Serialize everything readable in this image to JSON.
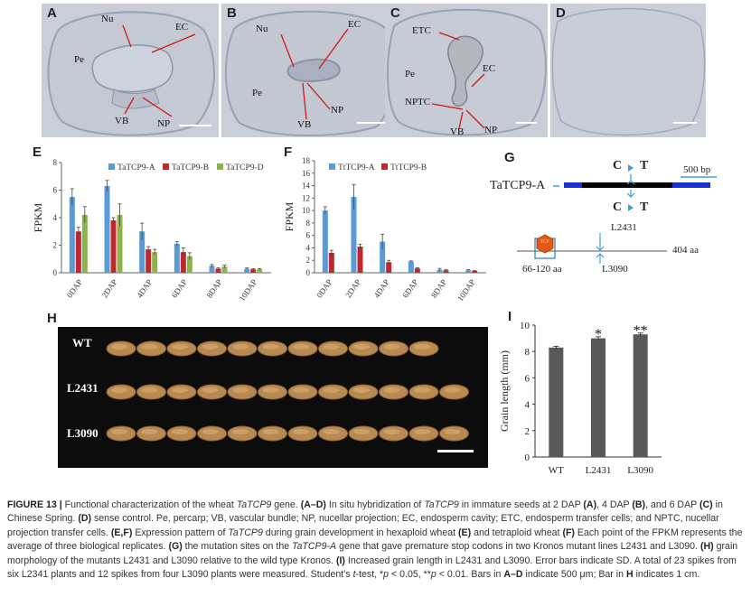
{
  "panel_a": {
    "letter": "A",
    "labels": {
      "nu": "Nu",
      "ec": "EC",
      "pe": "Pe",
      "vb": "VB",
      "np": "NP"
    }
  },
  "panel_b": {
    "letter": "B",
    "labels": {
      "nu": "Nu",
      "ec": "EC",
      "pe": "Pe",
      "vb": "VB",
      "np": "NP"
    }
  },
  "panel_c": {
    "letter": "C",
    "labels": {
      "etc": "ETC",
      "ec": "EC",
      "pe": "Pe",
      "nptc": "NPTC",
      "vb": "VB",
      "np": "NP"
    }
  },
  "panel_d": {
    "letter": "D"
  },
  "panel_e_letter": "E",
  "panel_f_letter": "F",
  "panel_g": {
    "letter": "G",
    "gene_label": "TaTCP9-A",
    "mut_top": {
      "from": "C",
      "to": "T"
    },
    "mut_bottom": {
      "from": "C",
      "to": "T"
    },
    "scale": "500 bp",
    "line_l2431": "L2431",
    "line_l3090": "L3090",
    "protein_len": "404 aa",
    "domain_range": "66-120 aa",
    "domain_tag": "TCP",
    "colors": {
      "exon": "#1a2fd6",
      "intron": "#000000",
      "domain": "#e25a1a",
      "arrow": "#3aa0d8"
    }
  },
  "panel_h": {
    "letter": "H",
    "rows": [
      "WT",
      "L2431",
      "L3090"
    ]
  },
  "chart_data": [
    {
      "id": "E",
      "type": "bar",
      "ylabel": "FPKM",
      "ylim": [
        0,
        8
      ],
      "yticks": [
        0,
        2,
        4,
        6,
        8
      ],
      "categories": [
        "0DAP",
        "2DAP",
        "4DAP",
        "6DAP",
        "8DAP",
        "10DAP"
      ],
      "series": [
        {
          "name": "TaTCP9-A",
          "color": "#5b9bd5",
          "values": [
            5.5,
            6.3,
            3.0,
            2.1,
            0.5,
            0.3
          ],
          "errors": [
            0.6,
            0.4,
            0.6,
            0.15,
            0.1,
            0.05
          ]
        },
        {
          "name": "TaTCP9-B",
          "color": "#c0282d",
          "values": [
            3.0,
            3.8,
            1.7,
            1.5,
            0.3,
            0.25
          ],
          "errors": [
            0.3,
            0.2,
            0.2,
            0.3,
            0.05,
            0.05
          ]
        },
        {
          "name": "TaTCP9-D",
          "color": "#8db34a",
          "values": [
            4.2,
            4.2,
            1.5,
            1.2,
            0.45,
            0.25
          ],
          "errors": [
            0.6,
            0.8,
            0.2,
            0.25,
            0.1,
            0.05
          ]
        }
      ]
    },
    {
      "id": "F",
      "type": "bar",
      "ylabel": "FPKM",
      "ylim": [
        0,
        18
      ],
      "yticks": [
        0,
        2,
        4,
        6,
        8,
        10,
        12,
        14,
        16,
        18
      ],
      "categories": [
        "0DAP",
        "2DAP",
        "4DAP",
        "6DAP",
        "8DAP",
        "10DAP"
      ],
      "series": [
        {
          "name": "TtTCP9-A",
          "color": "#5b9bd5",
          "values": [
            10.0,
            12.2,
            5.0,
            1.8,
            0.5,
            0.4
          ],
          "errors": [
            0.6,
            2.0,
            1.2,
            0.1,
            0.2,
            0.1
          ]
        },
        {
          "name": "TtTCP9-B",
          "color": "#c0282d",
          "values": [
            3.2,
            4.2,
            1.7,
            0.7,
            0.4,
            0.3
          ],
          "errors": [
            0.4,
            0.4,
            0.3,
            0.1,
            0.1,
            0.05
          ]
        }
      ]
    },
    {
      "id": "I",
      "type": "bar",
      "ylabel": "Grain length (mm)",
      "ylim": [
        0,
        10
      ],
      "yticks": [
        0,
        2,
        4,
        6,
        8,
        10
      ],
      "categories": [
        "WT",
        "L2431",
        "L3090"
      ],
      "values": [
        8.3,
        9.0,
        9.3
      ],
      "errors": [
        0.1,
        0.12,
        0.1
      ],
      "significance": [
        "",
        "*",
        "**"
      ],
      "color": "#595959"
    }
  ],
  "caption": {
    "fig": "FIGURE 13 |",
    "t1": " Functional characterization of the wheat ",
    "g1": "TaTCP9",
    "t2": " gene. ",
    "ad": "(A–D)",
    "t3": " In situ hybridization of ",
    "g2": "TaTCP9",
    "t4": " in immature seeds at 2 DAP ",
    "a": "(A)",
    "t5": ", 4 DAP ",
    "b": "(B)",
    "t6": ", and 6 DAP ",
    "c": "(C)",
    "t7": " in Chinese Spring. ",
    "d": "(D)",
    "t8": " sense control. Pe, percarp; VB, vascular bundle; NP, nucellar projection; EC, endosperm cavity; ETC, endosperm transfer cells; and NPTC, nucellar projection transfer cells. ",
    "ef": "(E,F)",
    "t9": " Expression pattern of ",
    "g3": "TaTCP9",
    "t10": " during grain development in hexaploid wheat ",
    "e": "(E)",
    "t11": " and tetraploid wheat ",
    "f": "(F)",
    "t12": " Each point of the FPKM represents the average of three biological replicates. ",
    "g": "(G)",
    "t13": " the mutation sites on the ",
    "g4": "TaTCP9-A",
    "t14": " gene that gave premature stop codons in two Kronos mutant lines L2431 and L3090. ",
    "h": "(H)",
    "t15": " grain morphology of the mutants L2431 and L3090 relative to the wild type Kronos. ",
    "i": "(I)",
    "t16": " Increased grain length in L2431 and L3090. Error bars indicate SD. A total of 23 spikes from six L2341 plants and 12 spikes from four L3090 plants were measured. Student’s ",
    "tt": "t",
    "t17": "-test, *",
    "p1": "p",
    "t18": " < 0.05, **",
    "p2": "p",
    "t19": " < 0.01. Bars in ",
    "ad2": "A–D",
    "t20": " indicate 500 μm; Bar in ",
    "h2": "H",
    "t21": " indicates 1 cm."
  }
}
